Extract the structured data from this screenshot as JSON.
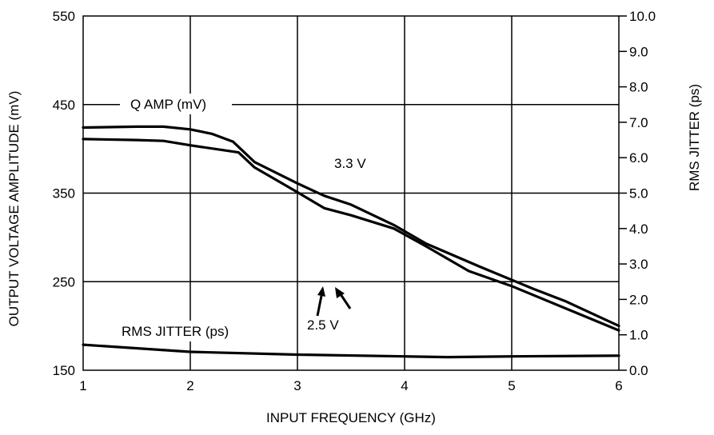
{
  "chart_data": {
    "type": "line",
    "title": "",
    "xlabel": "INPUT FREQUENCY (GHz)",
    "ylabel": "OUTPUT VOLTAGE AMPLITUDE (mV)",
    "y2label": "RMS JITTER (ps)",
    "xlim": [
      1,
      6
    ],
    "ylim": [
      150,
      550
    ],
    "y2lim": [
      0,
      10
    ],
    "x_ticks": [
      "1",
      "2",
      "3",
      "4",
      "5",
      "6"
    ],
    "y_ticks": [
      "150",
      "250",
      "350",
      "450",
      "550"
    ],
    "y2_ticks": [
      "0.0",
      "1.0",
      "2.0",
      "3.0",
      "4.0",
      "5.0",
      "6.0",
      "7.0",
      "8.0",
      "9.0",
      "10.0"
    ],
    "grid": true,
    "series": [
      {
        "name": "3.3 V",
        "axis": "left",
        "x": [
          1,
          1.5,
          1.75,
          2.0,
          2.2,
          2.4,
          2.6,
          3.0,
          3.25,
          3.5,
          3.9,
          4.2,
          4.7,
          5.2,
          5.5,
          6.0
        ],
        "y": [
          424,
          425,
          425,
          422,
          417,
          408,
          385,
          361,
          347,
          337,
          314,
          293,
          267,
          242,
          228,
          200
        ]
      },
      {
        "name": "2.5 V",
        "axis": "left",
        "x": [
          1,
          1.5,
          1.75,
          2.0,
          2.45,
          2.6,
          3.0,
          3.25,
          3.5,
          3.9,
          4.2,
          4.6,
          5.0,
          5.5,
          6.0
        ],
        "y": [
          411,
          410,
          409,
          404,
          396,
          379,
          351,
          333,
          325,
          310,
          290,
          262,
          245,
          220,
          195
        ]
      },
      {
        "name": "RMS JITTER (ps)",
        "axis": "right",
        "x": [
          1,
          2,
          3,
          4,
          4.4,
          5,
          6
        ],
        "y": [
          0.72,
          0.52,
          0.44,
          0.39,
          0.37,
          0.39,
          0.41
        ]
      }
    ],
    "annotations": [
      {
        "text": "Q AMP (mV)"
      },
      {
        "text": "3.3 V"
      },
      {
        "text": "2.5 V"
      },
      {
        "text": "RMS JITTER (ps)"
      }
    ]
  }
}
